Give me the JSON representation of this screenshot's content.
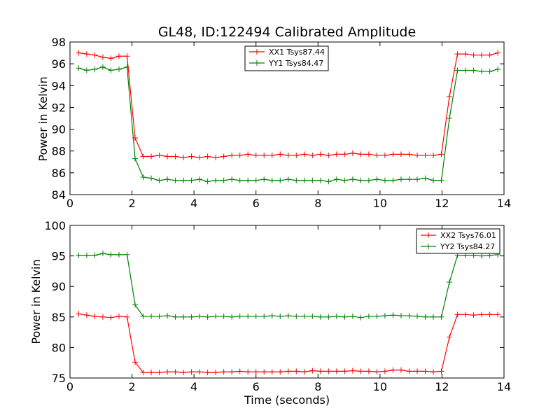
{
  "colors": {
    "red": "#ff0000",
    "green": "#008000"
  },
  "chart_data": [
    {
      "type": "line",
      "title": "GL48, ID:122494 Calibrated Amplitude",
      "xlabel": "",
      "ylabel": "Power in Kelvin",
      "xlim": [
        0,
        14
      ],
      "ylim": [
        84,
        98
      ],
      "xticks": [
        "0",
        "2",
        "4",
        "6",
        "8",
        "10",
        "12",
        "14"
      ],
      "yticks": [
        "84",
        "86",
        "88",
        "90",
        "92",
        "94",
        "96",
        "98"
      ],
      "legend": "top-center",
      "x": [
        0.28,
        0.54,
        0.8,
        1.06,
        1.32,
        1.58,
        1.84,
        2.1,
        2.36,
        2.62,
        2.88,
        3.14,
        3.4,
        3.66,
        3.92,
        4.18,
        4.44,
        4.7,
        4.96,
        5.22,
        5.48,
        5.74,
        6.0,
        6.26,
        6.52,
        6.78,
        7.04,
        7.3,
        7.56,
        7.82,
        8.08,
        8.34,
        8.6,
        8.86,
        9.12,
        9.38,
        9.64,
        9.9,
        10.16,
        10.42,
        10.68,
        10.94,
        11.2,
        11.46,
        11.72,
        11.98,
        12.24,
        12.5,
        12.76,
        13.02,
        13.28,
        13.54,
        13.8
      ],
      "series": [
        {
          "name": "XX1 Tsys87.44",
          "color": "red",
          "values": [
            97.0,
            96.9,
            96.8,
            96.6,
            96.5,
            96.7,
            96.7,
            89.2,
            87.5,
            87.5,
            87.6,
            87.5,
            87.5,
            87.4,
            87.5,
            87.4,
            87.5,
            87.4,
            87.5,
            87.6,
            87.6,
            87.7,
            87.6,
            87.6,
            87.6,
            87.7,
            87.6,
            87.6,
            87.7,
            87.6,
            87.7,
            87.6,
            87.7,
            87.7,
            87.8,
            87.7,
            87.7,
            87.6,
            87.6,
            87.7,
            87.7,
            87.7,
            87.6,
            87.6,
            87.6,
            87.7,
            93.0,
            96.9,
            96.9,
            96.8,
            96.8,
            96.8,
            97.0
          ]
        },
        {
          "name": "YY1 Tsys84.47",
          "color": "green",
          "values": [
            95.6,
            95.4,
            95.5,
            95.7,
            95.4,
            95.5,
            95.7,
            87.3,
            85.6,
            85.5,
            85.3,
            85.4,
            85.3,
            85.3,
            85.3,
            85.4,
            85.2,
            85.3,
            85.3,
            85.4,
            85.3,
            85.3,
            85.3,
            85.4,
            85.3,
            85.3,
            85.4,
            85.3,
            85.3,
            85.3,
            85.3,
            85.2,
            85.4,
            85.3,
            85.4,
            85.3,
            85.3,
            85.4,
            85.3,
            85.3,
            85.4,
            85.4,
            85.4,
            85.5,
            85.3,
            85.3,
            91.0,
            95.4,
            95.4,
            95.4,
            95.3,
            95.3,
            95.5
          ]
        }
      ]
    },
    {
      "type": "line",
      "title": "",
      "xlabel": "Time (seconds)",
      "ylabel": "Power in Kelvin",
      "xlim": [
        0,
        14
      ],
      "ylim": [
        75,
        100
      ],
      "xticks": [
        "0",
        "2",
        "4",
        "6",
        "8",
        "10",
        "12",
        "14"
      ],
      "yticks": [
        "75",
        "80",
        "85",
        "90",
        "95",
        "100"
      ],
      "legend": "top-right",
      "x": [
        0.28,
        0.54,
        0.8,
        1.06,
        1.32,
        1.58,
        1.84,
        2.1,
        2.36,
        2.62,
        2.88,
        3.14,
        3.4,
        3.66,
        3.92,
        4.18,
        4.44,
        4.7,
        4.96,
        5.22,
        5.48,
        5.74,
        6.0,
        6.26,
        6.52,
        6.78,
        7.04,
        7.3,
        7.56,
        7.82,
        8.08,
        8.34,
        8.6,
        8.86,
        9.12,
        9.38,
        9.64,
        9.9,
        10.16,
        10.42,
        10.68,
        10.94,
        11.2,
        11.46,
        11.72,
        11.98,
        12.24,
        12.5,
        12.76,
        13.02,
        13.28,
        13.54,
        13.8
      ],
      "series": [
        {
          "name": "XX2 Tsys76.01",
          "color": "red",
          "values": [
            85.5,
            85.3,
            85.1,
            85.0,
            84.9,
            85.1,
            85.0,
            77.6,
            75.9,
            75.9,
            75.9,
            76.0,
            76.0,
            75.9,
            76.0,
            76.0,
            75.9,
            75.9,
            76.0,
            76.0,
            76.1,
            76.0,
            76.0,
            76.0,
            76.0,
            76.0,
            76.1,
            76.1,
            76.0,
            76.2,
            76.1,
            76.1,
            76.1,
            76.1,
            76.2,
            76.1,
            76.1,
            76.0,
            76.1,
            76.3,
            76.3,
            76.1,
            76.1,
            76.1,
            76.0,
            76.1,
            81.7,
            85.4,
            85.4,
            85.3,
            85.4,
            85.4,
            85.4
          ]
        },
        {
          "name": "YY2 Tsys84.27",
          "color": "green",
          "values": [
            95.1,
            95.1,
            95.1,
            95.4,
            95.2,
            95.2,
            95.2,
            87.0,
            85.1,
            85.1,
            85.1,
            85.2,
            85.0,
            85.0,
            85.0,
            85.1,
            85.0,
            85.1,
            85.1,
            85.0,
            85.1,
            85.1,
            85.1,
            85.1,
            85.2,
            85.1,
            85.2,
            85.1,
            85.1,
            85.1,
            85.0,
            85.0,
            85.1,
            85.0,
            85.1,
            84.9,
            85.1,
            85.1,
            85.2,
            85.3,
            85.2,
            85.2,
            85.1,
            85.0,
            85.0,
            85.0,
            90.7,
            95.1,
            95.1,
            95.1,
            95.0,
            95.1,
            95.2
          ]
        }
      ]
    }
  ]
}
